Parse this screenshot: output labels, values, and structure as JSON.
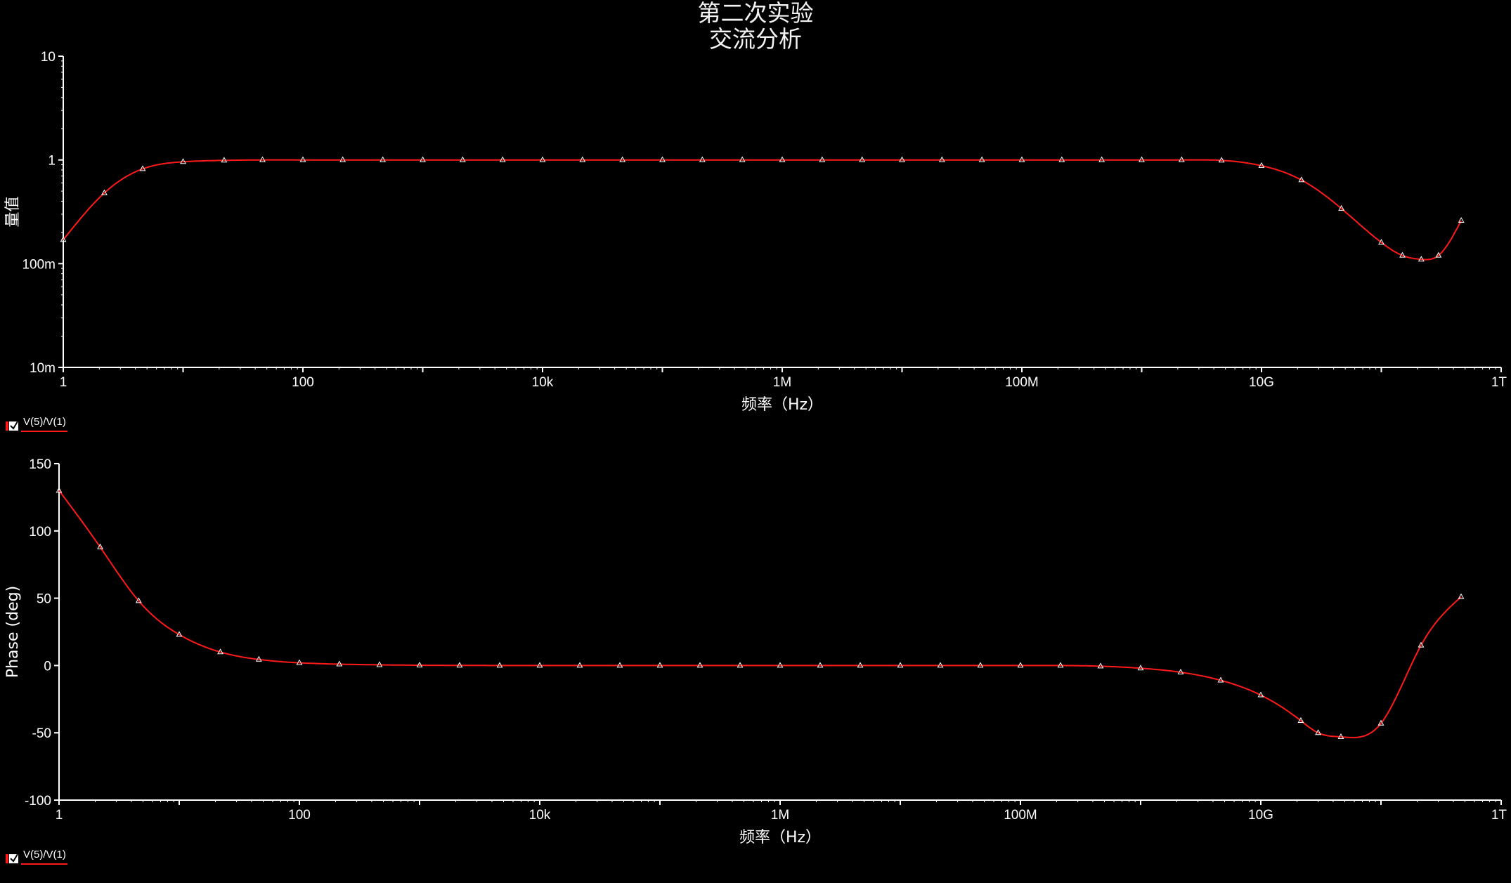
{
  "titles": {
    "line1": "第二次实验",
    "line2": "交流分析"
  },
  "colors": {
    "background": "#000000",
    "trace": "#ff1a1a",
    "marker": "#ffffff",
    "axis": "#ffffff"
  },
  "chart_data": [
    {
      "type": "line",
      "scale": {
        "x": "log",
        "y": "log"
      },
      "xlabel": "频率（Hz）",
      "ylabel": "量值",
      "xlim": [
        1,
        1000000000000
      ],
      "ylim": [
        0.01,
        10
      ],
      "x_ticks": [
        {
          "value": 1,
          "label": "1"
        },
        {
          "value": 100,
          "label": "100"
        },
        {
          "value": 10000,
          "label": "10k"
        },
        {
          "value": 1000000,
          "label": "1M"
        },
        {
          "value": 100000000,
          "label": "100M"
        },
        {
          "value": 10000000000,
          "label": "10G"
        },
        {
          "value": 1000000000000,
          "label": "1T"
        }
      ],
      "y_ticks": [
        {
          "value": 10,
          "label": "10"
        },
        {
          "value": 1,
          "label": "1"
        },
        {
          "value": 0.1,
          "label": "100m"
        },
        {
          "value": 0.01,
          "label": "10m"
        }
      ],
      "legend": {
        "label": "V(5)/V(1)",
        "placement": "bottom-left"
      },
      "series": [
        {
          "name": "V(5)/V(1)",
          "x": [
            1,
            2.2,
            4.6,
            10,
            22,
            46,
            100,
            215,
            464,
            1000,
            2154,
            4642,
            10000,
            21544,
            46416,
            100000,
            215443,
            464159,
            1000000,
            2154435,
            4641589,
            10000000,
            21544347,
            46415888,
            100000000,
            215443469,
            464158883,
            1000000000,
            2154434690,
            4641588834,
            10000000000,
            21544346900,
            46415888336,
            100000000000,
            150000000000,
            215443469003,
            300000000000,
            464158883361
          ],
          "y": [
            0.17,
            0.48,
            0.82,
            0.96,
            0.99,
            1.0,
            1.0,
            1.0,
            1.0,
            1.0,
            1.0,
            1.0,
            1.0,
            1.0,
            1.0,
            1.0,
            1.0,
            1.0,
            1.0,
            1.0,
            1.0,
            1.0,
            1.0,
            1.0,
            1.0,
            1.0,
            1.0,
            1.0,
            1.0,
            0.99,
            0.88,
            0.64,
            0.34,
            0.16,
            0.12,
            0.11,
            0.12,
            0.26
          ]
        }
      ]
    },
    {
      "type": "line",
      "scale": {
        "x": "log",
        "y": "linear"
      },
      "xlabel": "频率（Hz）",
      "ylabel": "Phase (deg)",
      "xlim": [
        1,
        1000000000000
      ],
      "ylim": [
        -100,
        150
      ],
      "x_ticks": [
        {
          "value": 1,
          "label": "1"
        },
        {
          "value": 100,
          "label": "100"
        },
        {
          "value": 10000,
          "label": "10k"
        },
        {
          "value": 1000000,
          "label": "1M"
        },
        {
          "value": 100000000,
          "label": "100M"
        },
        {
          "value": 10000000000,
          "label": "10G"
        },
        {
          "value": 1000000000000,
          "label": "1T"
        }
      ],
      "y_ticks": [
        {
          "value": 150,
          "label": "150"
        },
        {
          "value": 100,
          "label": "100"
        },
        {
          "value": 50,
          "label": "50"
        },
        {
          "value": 0,
          "label": "0"
        },
        {
          "value": -50,
          "label": "-50"
        },
        {
          "value": -100,
          "label": "-100"
        }
      ],
      "legend": {
        "label": "V(5)/V(1)",
        "placement": "bottom-left"
      },
      "series": [
        {
          "name": "V(5)/V(1)",
          "x": [
            1,
            2.2,
            4.6,
            10,
            22,
            46,
            100,
            215,
            464,
            1000,
            2154,
            4642,
            10000,
            21544,
            46416,
            100000,
            215443,
            464159,
            1000000,
            2154435,
            4641589,
            10000000,
            21544347,
            46415888,
            100000000,
            215443469,
            464158883,
            1000000000,
            2154434690,
            4641588834,
            10000000000,
            21544346900,
            30000000000,
            46415888336,
            100000000000,
            215443469003,
            464158883361
          ],
          "y": [
            130,
            88,
            48,
            23,
            10,
            4.5,
            2,
            1,
            0.5,
            0.2,
            0.1,
            0,
            0,
            0,
            0,
            0,
            0,
            0,
            0,
            0,
            0,
            0,
            0,
            0,
            0,
            0,
            -0.5,
            -2,
            -5,
            -11,
            -22,
            -41,
            -50,
            -53,
            -43,
            15,
            51
          ]
        }
      ]
    }
  ]
}
